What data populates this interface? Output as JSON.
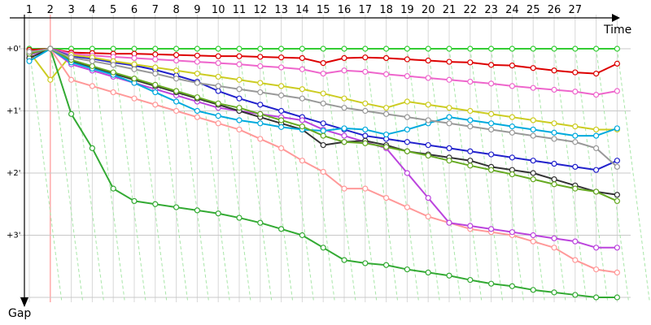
{
  "chart_data": {
    "type": "line",
    "xlabel": "Time",
    "ylabel": "Gap",
    "x": [
      1,
      2,
      3,
      4,
      5,
      6,
      7,
      8,
      9,
      10,
      11,
      12,
      13,
      14,
      15,
      16,
      17,
      18,
      19,
      20,
      21,
      22,
      23,
      24,
      25,
      26,
      27,
      28,
      29
    ],
    "x_tick_labels": [
      "1",
      "2",
      "3",
      "4",
      "5",
      "6",
      "7",
      "8",
      "9",
      "10",
      "11",
      "12",
      "13",
      "14",
      "15",
      "16",
      "17",
      "18",
      "19",
      "20",
      "21",
      "22",
      "23",
      "24",
      "25",
      "26",
      "27"
    ],
    "y_tick_labels": [
      "+0'",
      "+1'",
      "+2'",
      "+3'"
    ],
    "y_tick_values": [
      0,
      1,
      2,
      3
    ],
    "ylim": [
      0,
      4
    ],
    "grid": true,
    "highlight_lap": 2,
    "series": [
      {
        "color": "#33cc33",
        "values": [
          0,
          0,
          0,
          0,
          0,
          0,
          0,
          0,
          0,
          0,
          0,
          0,
          0,
          0,
          0,
          0,
          0,
          0,
          0,
          0,
          0,
          0,
          0,
          0,
          0,
          0,
          0,
          0,
          0
        ]
      },
      {
        "color": "#dd0000",
        "values": [
          0.02,
          0,
          0.06,
          0.07,
          0.08,
          0.08,
          0.09,
          0.1,
          0.11,
          0.12,
          0.12,
          0.13,
          0.14,
          0.15,
          0.23,
          0.15,
          0.14,
          0.15,
          0.17,
          0.19,
          0.21,
          0.22,
          0.26,
          0.27,
          0.31,
          0.35,
          0.38,
          0.4,
          0.24
        ]
      },
      {
        "color": "#ee66cc",
        "values": [
          0.05,
          0,
          0.08,
          0.11,
          0.13,
          0.15,
          0.17,
          0.19,
          0.21,
          0.23,
          0.25,
          0.28,
          0.3,
          0.33,
          0.4,
          0.35,
          0.37,
          0.41,
          0.44,
          0.47,
          0.5,
          0.53,
          0.56,
          0.6,
          0.63,
          0.66,
          0.69,
          0.74,
          0.68
        ]
      },
      {
        "color": "#2222cc",
        "values": [
          0.1,
          0,
          0.12,
          0.16,
          0.22,
          0.27,
          0.34,
          0.43,
          0.53,
          0.68,
          0.8,
          0.9,
          1.0,
          1.1,
          1.2,
          1.3,
          1.4,
          1.45,
          1.5,
          1.55,
          1.6,
          1.65,
          1.7,
          1.75,
          1.8,
          1.85,
          1.9,
          1.95,
          1.8
        ]
      },
      {
        "color": "#cccc22",
        "values": [
          0.05,
          0.5,
          0.1,
          0.14,
          0.2,
          0.25,
          0.3,
          0.35,
          0.4,
          0.45,
          0.5,
          0.55,
          0.6,
          0.65,
          0.72,
          0.8,
          0.88,
          0.95,
          0.85,
          0.9,
          0.95,
          1.0,
          1.05,
          1.1,
          1.15,
          1.2,
          1.25,
          1.3,
          1.3
        ]
      },
      {
        "color": "#33aa33",
        "values": [
          0.07,
          0,
          1.05,
          1.6,
          2.25,
          2.45,
          2.5,
          2.55,
          2.6,
          2.65,
          2.72,
          2.8,
          2.9,
          3.0,
          3.2,
          3.4,
          3.45,
          3.48,
          3.55,
          3.6,
          3.65,
          3.72,
          3.78,
          3.82,
          3.88,
          3.92,
          3.96,
          4.0,
          4.0
        ]
      },
      {
        "color": "#ff9999",
        "values": [
          0.07,
          0,
          0.5,
          0.6,
          0.7,
          0.8,
          0.9,
          1.0,
          1.1,
          1.2,
          1.3,
          1.45,
          1.6,
          1.8,
          1.98,
          2.25,
          2.25,
          2.4,
          2.55,
          2.7,
          2.8,
          2.9,
          2.95,
          3.0,
          3.1,
          3.2,
          3.4,
          3.55,
          3.6
        ]
      },
      {
        "color": "#bb44dd",
        "values": [
          0.1,
          0,
          0.25,
          0.35,
          0.45,
          0.55,
          0.65,
          0.75,
          0.85,
          0.95,
          1.0,
          1.05,
          1.1,
          1.15,
          1.3,
          1.4,
          1.5,
          1.6,
          2.0,
          2.4,
          2.8,
          2.85,
          2.9,
          2.95,
          3.0,
          3.05,
          3.1,
          3.2,
          3.2
        ]
      },
      {
        "color": "#333333",
        "values": [
          0.15,
          0,
          0.2,
          0.3,
          0.4,
          0.5,
          0.6,
          0.7,
          0.8,
          0.9,
          1.0,
          1.1,
          1.2,
          1.3,
          1.55,
          1.5,
          1.48,
          1.55,
          1.65,
          1.7,
          1.75,
          1.8,
          1.9,
          1.95,
          2.0,
          2.1,
          2.2,
          2.3,
          2.35
        ]
      },
      {
        "color": "#00aadd",
        "values": [
          0.2,
          0,
          0.22,
          0.32,
          0.42,
          0.55,
          0.7,
          0.85,
          1.0,
          1.08,
          1.15,
          1.2,
          1.26,
          1.3,
          1.32,
          1.28,
          1.3,
          1.38,
          1.3,
          1.2,
          1.1,
          1.15,
          1.2,
          1.25,
          1.3,
          1.35,
          1.4,
          1.4,
          1.28
        ]
      },
      {
        "color": "#66aa22",
        "values": [
          0.08,
          0,
          0.18,
          0.28,
          0.38,
          0.48,
          0.58,
          0.68,
          0.78,
          0.88,
          0.95,
          1.05,
          1.15,
          1.25,
          1.4,
          1.5,
          1.52,
          1.58,
          1.65,
          1.72,
          1.8,
          1.88,
          1.95,
          2.02,
          2.1,
          2.18,
          2.25,
          2.3,
          2.45
        ]
      },
      {
        "color": "#999999",
        "values": [
          0.05,
          0,
          0.14,
          0.2,
          0.26,
          0.33,
          0.4,
          0.48,
          0.55,
          0.6,
          0.65,
          0.7,
          0.75,
          0.8,
          0.88,
          0.95,
          1.0,
          1.05,
          1.1,
          1.15,
          1.2,
          1.25,
          1.3,
          1.35,
          1.4,
          1.45,
          1.5,
          1.6,
          1.9
        ]
      }
    ]
  }
}
